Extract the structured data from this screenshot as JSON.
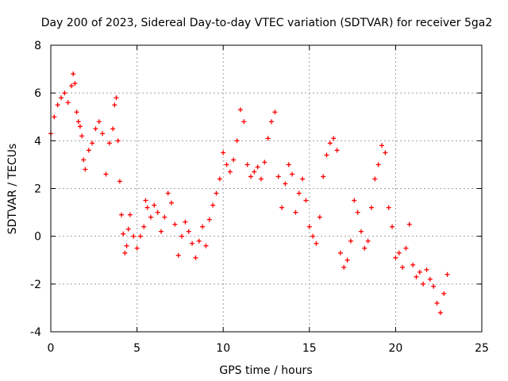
{
  "chart_data": {
    "type": "scatter",
    "title": "Day 200 of 2023, Sidereal Day-to-day VTEC variation (SDTVAR) for receiver 5ga2",
    "xlabel": "GPS time / hours",
    "ylabel": "SDTVAR / TECUs",
    "xlim": [
      0,
      25
    ],
    "ylim": [
      -4,
      8
    ],
    "xticks": [
      0,
      5,
      10,
      15,
      20,
      25
    ],
    "yticks": [
      -4,
      -2,
      0,
      2,
      4,
      6,
      8
    ],
    "xtick_labels": [
      "0",
      "5",
      "10",
      "15",
      "20",
      "25"
    ],
    "ytick_labels": [
      "-4",
      "-2",
      "0",
      "2",
      "4",
      "6",
      "8"
    ],
    "grid": true,
    "marker": "plus",
    "color": "#ff0000",
    "series": [
      {
        "name": "SDTVAR",
        "x": [
          0.0,
          0.2,
          0.4,
          0.6,
          0.8,
          1.0,
          1.2,
          1.3,
          1.4,
          1.5,
          1.6,
          1.7,
          1.8,
          1.9,
          2.0,
          2.2,
          2.4,
          2.6,
          2.8,
          3.0,
          3.2,
          3.4,
          3.6,
          3.7,
          3.8,
          3.9,
          4.0,
          4.1,
          4.2,
          4.3,
          4.4,
          4.5,
          4.6,
          4.8,
          5.0,
          5.2,
          5.4,
          5.5,
          5.6,
          5.8,
          6.0,
          6.2,
          6.4,
          6.6,
          6.8,
          7.0,
          7.2,
          7.4,
          7.6,
          7.8,
          8.0,
          8.2,
          8.4,
          8.6,
          8.8,
          9.0,
          9.2,
          9.4,
          9.6,
          9.8,
          10.0,
          10.2,
          10.4,
          10.6,
          10.8,
          11.0,
          11.2,
          11.4,
          11.6,
          11.8,
          12.0,
          12.2,
          12.4,
          12.6,
          12.8,
          13.0,
          13.2,
          13.4,
          13.6,
          13.8,
          14.0,
          14.2,
          14.4,
          14.6,
          14.8,
          15.0,
          15.2,
          15.4,
          15.6,
          15.8,
          16.0,
          16.2,
          16.4,
          16.6,
          16.8,
          17.0,
          17.2,
          17.4,
          17.6,
          17.8,
          18.0,
          18.2,
          18.4,
          18.6,
          18.8,
          19.0,
          19.2,
          19.4,
          19.6,
          19.8,
          20.0,
          20.2,
          20.4,
          20.6,
          20.8,
          21.0,
          21.2,
          21.4,
          21.6,
          21.8,
          22.0,
          22.2,
          22.4,
          22.6,
          22.8,
          23.0
        ],
        "values": [
          4.3,
          5.0,
          5.5,
          5.8,
          6.0,
          5.6,
          6.3,
          6.8,
          6.4,
          5.2,
          4.8,
          4.6,
          4.2,
          3.2,
          2.8,
          3.6,
          3.9,
          4.5,
          4.8,
          4.3,
          2.6,
          3.9,
          4.5,
          5.5,
          5.8,
          4.0,
          2.3,
          0.9,
          0.1,
          -0.7,
          -0.4,
          0.3,
          0.9,
          0.0,
          -0.5,
          0.0,
          0.4,
          1.5,
          1.2,
          0.8,
          1.3,
          1.0,
          0.2,
          0.8,
          1.8,
          1.4,
          0.5,
          -0.8,
          0.0,
          0.6,
          0.2,
          -0.3,
          -0.9,
          -0.2,
          0.4,
          -0.4,
          0.7,
          1.3,
          1.8,
          2.4,
          3.5,
          3.0,
          2.7,
          3.2,
          4.0,
          5.3,
          4.8,
          3.0,
          2.5,
          2.7,
          2.9,
          2.4,
          3.1,
          4.1,
          4.8,
          5.2,
          2.5,
          1.2,
          2.2,
          3.0,
          2.6,
          1.0,
          1.8,
          2.4,
          1.5,
          0.4,
          0.0,
          -0.3,
          0.8,
          2.5,
          3.4,
          3.9,
          4.1,
          3.6,
          -0.7,
          -1.3,
          -1.0,
          -0.2,
          1.5,
          1.0,
          0.2,
          -0.5,
          -0.2,
          1.2,
          2.4,
          3.0,
          3.8,
          3.5,
          1.2,
          0.4,
          -0.9,
          -0.7,
          -1.3,
          -0.5,
          0.5,
          -1.2,
          -1.7,
          -1.5,
          -2.0,
          -1.4,
          -1.8,
          -2.1,
          -2.8,
          -3.2,
          -2.4,
          -1.6
        ]
      }
    ]
  }
}
